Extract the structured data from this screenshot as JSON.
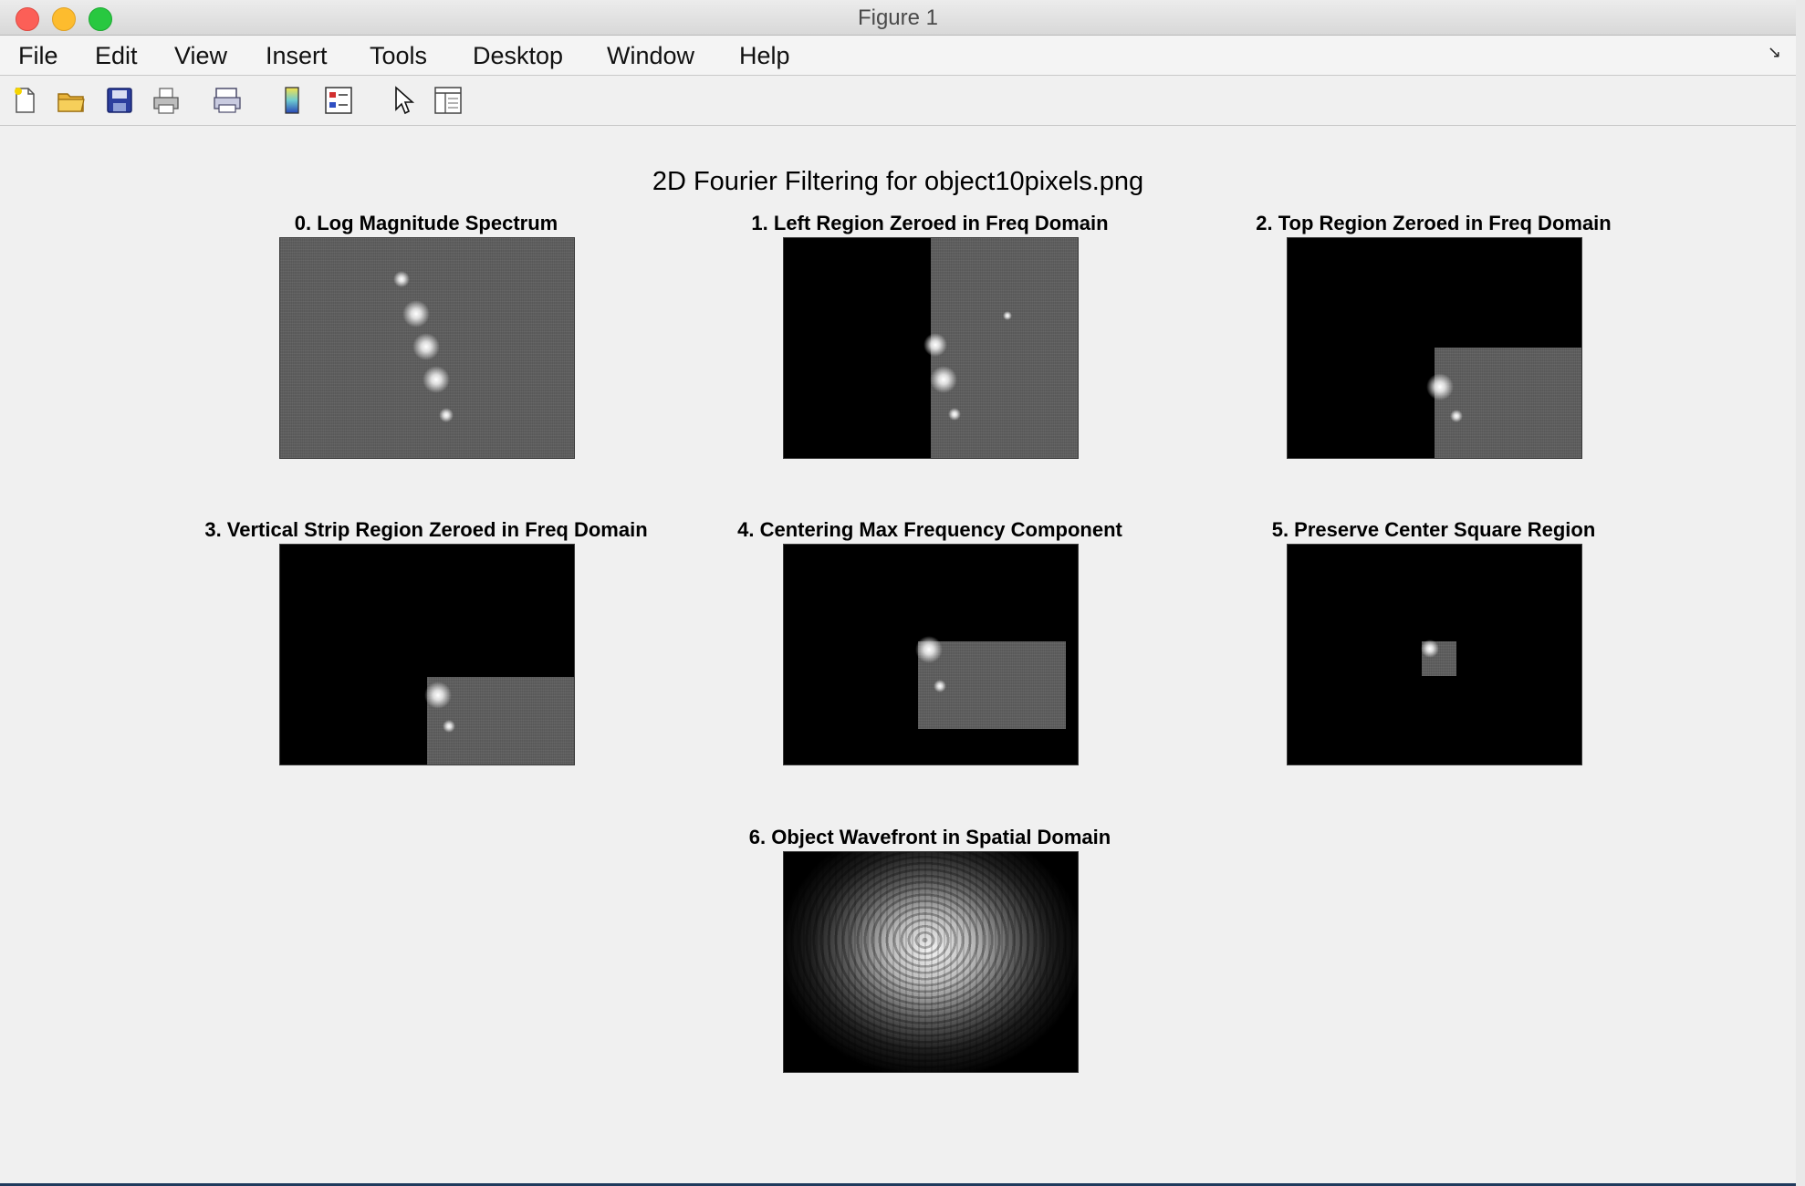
{
  "window": {
    "title": "Figure 1"
  },
  "menu": [
    "File",
    "Edit",
    "View",
    "Insert",
    "Tools",
    "Desktop",
    "Window",
    "Help"
  ],
  "toolbar_icons": [
    "new-figure-icon",
    "open-file-icon",
    "save-icon",
    "print-icon",
    "print-preview-icon",
    "colorbar-icon",
    "legend-icon",
    "pointer-icon",
    "property-inspector-icon"
  ],
  "figure": {
    "suptitle": "2D Fourier Filtering for object10pixels.png",
    "panels": [
      {
        "title": "0. Log Magnitude Spectrum"
      },
      {
        "title": "1. Left Region Zeroed in Freq Domain"
      },
      {
        "title": "2. Top Region Zeroed in Freq Domain"
      },
      {
        "title": "3. Vertical Strip Region Zeroed in Freq Domain"
      },
      {
        "title": "4. Centering Max Frequency Component"
      },
      {
        "title": "5. Preserve Center Square Region"
      },
      {
        "title": "6. Object Wavefront in Spatial Domain"
      }
    ]
  },
  "colors": {
    "close": "#fc5f57",
    "minimize": "#fdbc2e",
    "maximize": "#28c840",
    "background": "#f0f0f0"
  }
}
